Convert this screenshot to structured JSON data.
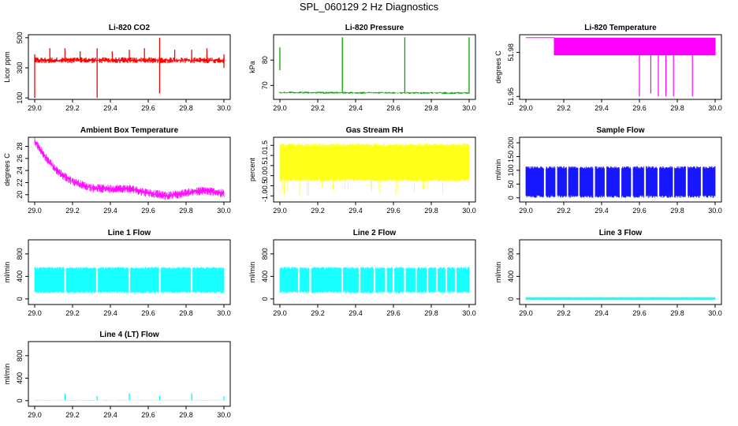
{
  "title": "SPL_060129  2 Hz Diagnostics",
  "chart_data": [
    {
      "type": "line",
      "title": "Li-820 CO2",
      "ylabel": "Licor ppm",
      "color": "#ff0000",
      "xlim": [
        29.0,
        30.0
      ],
      "ylim": [
        90,
        520
      ],
      "x_ticks": [
        29.0,
        29.2,
        29.4,
        29.6,
        29.8,
        30.0
      ],
      "x_tick_labels": [
        "29.0",
        "29.2",
        "29.4",
        "29.6",
        "29.8",
        "30.0"
      ],
      "y_ticks": [
        100,
        300,
        500
      ],
      "y_tick_labels": [
        "100",
        "300",
        "500"
      ],
      "series": [
        {
          "name": "CO2",
          "baseline": 350,
          "noise_band": [
            330,
            370
          ],
          "spikes": [
            {
              "x": 29.0,
              "low": 100,
              "high": 390
            },
            {
              "x": 29.08,
              "high": 430
            },
            {
              "x": 29.16,
              "high": 430
            },
            {
              "x": 29.24,
              "high": 410
            },
            {
              "x": 29.33,
              "low": 100,
              "high": 430
            },
            {
              "x": 29.41,
              "high": 410
            },
            {
              "x": 29.5,
              "high": 420
            },
            {
              "x": 29.58,
              "high": 430
            },
            {
              "x": 29.66,
              "low": 130,
              "high": 500
            },
            {
              "x": 29.74,
              "high": 420
            },
            {
              "x": 29.83,
              "high": 420
            },
            {
              "x": 29.91,
              "high": 430
            },
            {
              "x": 30.0,
              "low": 300,
              "high": 390
            }
          ]
        }
      ]
    },
    {
      "type": "line",
      "title": "Li-820 Pressure",
      "ylabel": "kPa",
      "color": "#00aa00",
      "xlim": [
        29.0,
        30.0
      ],
      "ylim": [
        64.5,
        90
      ],
      "x_ticks": [
        29.0,
        29.2,
        29.4,
        29.6,
        29.8,
        30.0
      ],
      "x_tick_labels": [
        "29.0",
        "29.2",
        "29.4",
        "29.6",
        "29.8",
        "30.0"
      ],
      "y_ticks": [
        70,
        80
      ],
      "y_tick_labels": [
        "70",
        "80"
      ],
      "series": [
        {
          "name": "pressure",
          "start": 67.2,
          "end": 67.0,
          "noise": 0.4,
          "spikes": [
            {
              "x": 29.0,
              "low": 76,
              "high": 85
            },
            {
              "x": 29.33,
              "high": 89
            },
            {
              "x": 29.66,
              "high": 89
            },
            {
              "x": 30.0,
              "high": 89
            }
          ]
        }
      ]
    },
    {
      "type": "line",
      "title": "Li-820 Temperature",
      "ylabel": "degrees C",
      "color": "#ff00ff",
      "xlim": [
        29.0,
        30.0
      ],
      "ylim": [
        51.948,
        51.992
      ],
      "x_ticks": [
        29.0,
        29.2,
        29.4,
        29.6,
        29.8,
        30.0
      ],
      "x_tick_labels": [
        "29.0",
        "29.2",
        "29.4",
        "29.6",
        "29.8",
        "30.0"
      ],
      "y_ticks": [
        51.95,
        51.98
      ],
      "y_tick_labels": [
        "51.95",
        "51.98"
      ],
      "series": [
        {
          "name": "temperature",
          "levels": [
            51.99,
            51.978
          ],
          "flat_until": 29.15,
          "dips": [
            {
              "x": 29.6,
              "low": 51.95
            },
            {
              "x": 29.66,
              "low": 51.952
            },
            {
              "x": 29.7,
              "low": 51.95
            },
            {
              "x": 29.74,
              "low": 51.95
            },
            {
              "x": 29.78,
              "low": 51.95
            },
            {
              "x": 29.88,
              "low": 51.95
            }
          ]
        }
      ]
    },
    {
      "type": "line",
      "title": "Ambient Box Temperature",
      "ylabel": "degrees C",
      "color": "#ff00ff",
      "xlim": [
        29.0,
        30.0
      ],
      "ylim": [
        18.8,
        29.5
      ],
      "x_ticks": [
        29.0,
        29.2,
        29.4,
        29.6,
        29.8,
        30.0
      ],
      "x_tick_labels": [
        "29.0",
        "29.2",
        "29.4",
        "29.6",
        "29.8",
        "30.0"
      ],
      "y_ticks": [
        20,
        22,
        24,
        26,
        28
      ],
      "y_tick_labels": [
        "20",
        "22",
        "24",
        "26",
        "28"
      ],
      "series": [
        {
          "name": "ambient",
          "x": [
            29.0,
            29.05,
            29.1,
            29.15,
            29.2,
            29.3,
            29.4,
            29.5,
            29.6,
            29.7,
            29.8,
            29.9,
            30.0
          ],
          "y": [
            28.8,
            26.5,
            24.5,
            23.2,
            22.2,
            21.1,
            21.0,
            21.0,
            20.3,
            19.8,
            20.3,
            20.7,
            20.2
          ],
          "noise": 0.7
        }
      ]
    },
    {
      "type": "line",
      "title": "Gas Stream RH",
      "ylabel": "percent",
      "color": "#ffff00",
      "xlim": [
        29.0,
        30.0
      ],
      "ylim": [
        -1.3,
        1.9
      ],
      "x_ticks": [
        29.0,
        29.2,
        29.4,
        29.6,
        29.8,
        30.0
      ],
      "x_tick_labels": [
        "29.0",
        "29.2",
        "29.4",
        "29.6",
        "29.8",
        "30.0"
      ],
      "y_ticks": [
        -1.0,
        -0.5,
        0.0,
        0.5,
        1.0,
        1.5
      ],
      "y_tick_labels": [
        "-1.0",
        "-0.5",
        "0.0",
        "0.5",
        "1.0",
        "1.5"
      ],
      "series": [
        {
          "name": "RH",
          "band": [
            -0.3,
            1.6
          ],
          "occasional_low": -1.0
        }
      ]
    },
    {
      "type": "line",
      "title": "Sample Flow",
      "ylabel": "ml/min",
      "color": "#0000ff",
      "xlim": [
        29.0,
        30.0
      ],
      "ylim": [
        -15,
        220
      ],
      "x_ticks": [
        29.0,
        29.2,
        29.4,
        29.6,
        29.8,
        30.0
      ],
      "x_tick_labels": [
        "29.0",
        "29.2",
        "29.4",
        "29.6",
        "29.8",
        "30.0"
      ],
      "y_ticks": [
        0,
        50,
        100,
        150,
        200
      ],
      "y_tick_labels": [
        "0",
        "50",
        "100",
        "150",
        "200"
      ],
      "series": [
        {
          "name": "sample_flow",
          "band": [
            0,
            115
          ],
          "gaps": [
            29.1,
            29.16,
            29.22,
            29.28,
            29.36,
            29.42,
            29.5,
            29.56,
            29.63,
            29.7,
            29.78,
            29.85,
            29.93
          ]
        }
      ]
    },
    {
      "type": "line",
      "title": "Line 1 Flow",
      "ylabel": "ml/min",
      "color": "#00ffff",
      "xlim": [
        29.0,
        30.0
      ],
      "ylim": [
        -100,
        1050
      ],
      "x_ticks": [
        29.0,
        29.2,
        29.4,
        29.6,
        29.8,
        30.0
      ],
      "x_tick_labels": [
        "29.0",
        "29.2",
        "29.4",
        "29.6",
        "29.8",
        "30.0"
      ],
      "y_ticks": [
        0,
        400,
        800
      ],
      "y_tick_labels": [
        "0",
        "400",
        "800"
      ],
      "series": [
        {
          "name": "line1",
          "band": [
            100,
            570
          ],
          "gaps": [
            29.16,
            29.33,
            29.5,
            29.66,
            29.83
          ]
        }
      ]
    },
    {
      "type": "line",
      "title": "Line 2 Flow",
      "ylabel": "ml/min",
      "color": "#00ffff",
      "xlim": [
        29.0,
        30.0
      ],
      "ylim": [
        -100,
        1050
      ],
      "x_ticks": [
        29.0,
        29.2,
        29.4,
        29.6,
        29.8,
        30.0
      ],
      "x_tick_labels": [
        "29.0",
        "29.2",
        "29.4",
        "29.6",
        "29.8",
        "30.0"
      ],
      "y_ticks": [
        0,
        400,
        800
      ],
      "y_tick_labels": [
        "0",
        "400",
        "800"
      ],
      "series": [
        {
          "name": "line2",
          "band": [
            100,
            570
          ],
          "gaps": [
            29.1,
            29.16,
            29.33,
            29.42,
            29.5,
            29.56,
            29.6,
            29.66,
            29.72,
            29.78,
            29.83,
            29.88,
            29.93
          ]
        }
      ]
    },
    {
      "type": "line",
      "title": "Line 3 Flow",
      "ylabel": "ml/min",
      "color": "#00ffff",
      "xlim": [
        29.0,
        30.0
      ],
      "ylim": [
        -100,
        1050
      ],
      "x_ticks": [
        29.0,
        29.2,
        29.4,
        29.6,
        29.8,
        30.0
      ],
      "x_tick_labels": [
        "29.0",
        "29.2",
        "29.4",
        "29.6",
        "29.8",
        "30.0"
      ],
      "y_ticks": [
        0,
        400,
        800
      ],
      "y_tick_labels": [
        "0",
        "400",
        "800"
      ],
      "series": [
        {
          "name": "line3",
          "band": [
            -20,
            30
          ]
        }
      ]
    },
    {
      "type": "line",
      "title": "Line 4 (LT) Flow",
      "ylabel": "ml/min",
      "color": "#00ffff",
      "xlim": [
        29.0,
        30.0
      ],
      "ylim": [
        -100,
        1050
      ],
      "x_ticks": [
        29.0,
        29.2,
        29.4,
        29.6,
        29.8,
        30.0
      ],
      "x_tick_labels": [
        "29.0",
        "29.2",
        "29.4",
        "29.6",
        "29.8",
        "30.0"
      ],
      "y_ticks": [
        0,
        400,
        800
      ],
      "y_tick_labels": [
        "0",
        "400",
        "800"
      ],
      "series": [
        {
          "name": "line4",
          "baseline": 10,
          "spikes": [
            {
              "x": 29.16,
              "high": 130
            },
            {
              "x": 29.33,
              "high": 80
            },
            {
              "x": 29.5,
              "high": 130
            },
            {
              "x": 29.66,
              "high": 80
            },
            {
              "x": 29.83,
              "high": 130
            },
            {
              "x": 30.0,
              "high": 80
            }
          ]
        }
      ]
    }
  ]
}
